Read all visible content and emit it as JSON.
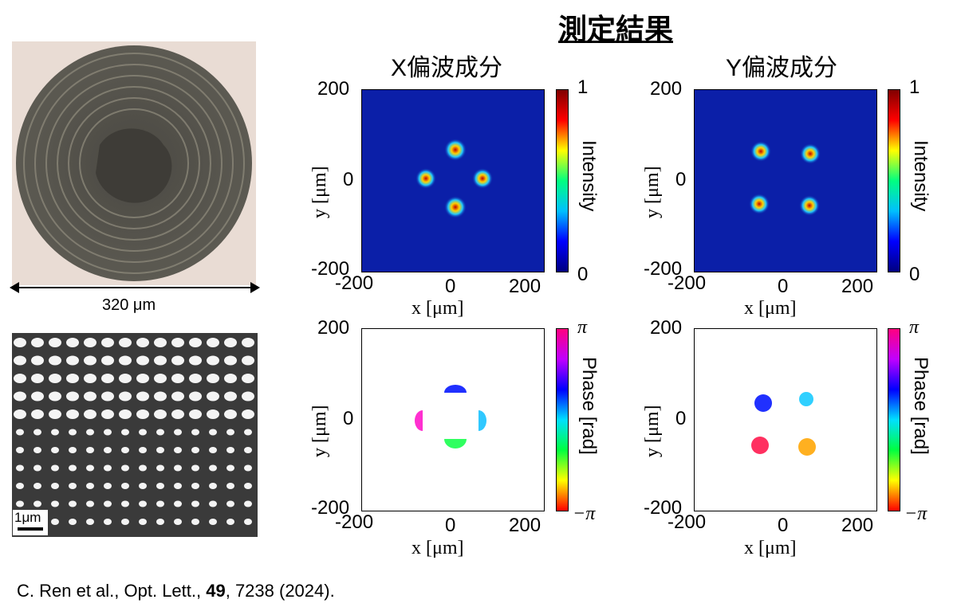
{
  "header": {
    "title": "測定結果",
    "col_x": "X偏波成分",
    "col_y": "Y偏波成分"
  },
  "left_panel": {
    "lens_width_label": "320 μm",
    "sem_scale_label": "1μm"
  },
  "intensity_plots": {
    "x_label": "x [μm]",
    "y_label": "y [μm]",
    "x_ticks": [
      "-200",
      "0",
      "200"
    ],
    "y_ticks": [
      "200",
      "0",
      "-200"
    ],
    "colorbar": {
      "label": "Intensity",
      "max": "1",
      "min": "0"
    }
  },
  "phase_plots": {
    "x_label": "x [μm]",
    "y_label": "y [μm]",
    "x_ticks": [
      "-200",
      "0",
      "200"
    ],
    "y_ticks": [
      "200",
      "0",
      "-200"
    ],
    "colorbar": {
      "label": "Phase [rad]",
      "max": "π",
      "min": "−π"
    }
  },
  "chart_data": [
    {
      "type": "heatmap",
      "panel": "X偏波成分 intensity",
      "xlim": [
        -200,
        200
      ],
      "ylim": [
        -200,
        200
      ],
      "spots": [
        {
          "x": 5,
          "y": 65
        },
        {
          "x": -60,
          "y": 5
        },
        {
          "x": 70,
          "y": 5
        },
        {
          "x": 5,
          "y": -60
        }
      ]
    },
    {
      "type": "heatmap",
      "panel": "Y偏波成分 intensity",
      "xlim": [
        -200,
        200
      ],
      "ylim": [
        -200,
        200
      ],
      "spots": [
        {
          "x": -55,
          "y": 60
        },
        {
          "x": 55,
          "y": 55
        },
        {
          "x": -55,
          "y": -55
        },
        {
          "x": 55,
          "y": -60
        }
      ]
    },
    {
      "type": "heatmap",
      "panel": "X偏波成分 phase",
      "xlim": [
        -200,
        200
      ],
      "ylim": [
        -200,
        200
      ]
    },
    {
      "type": "heatmap",
      "panel": "Y偏波成分 phase",
      "xlim": [
        -200,
        200
      ],
      "ylim": [
        -200,
        200
      ]
    }
  ],
  "citation": {
    "prefix": "C. Ren et al., Opt. Lett., ",
    "volume": "49",
    "suffix": ", 7238 (2024)."
  }
}
